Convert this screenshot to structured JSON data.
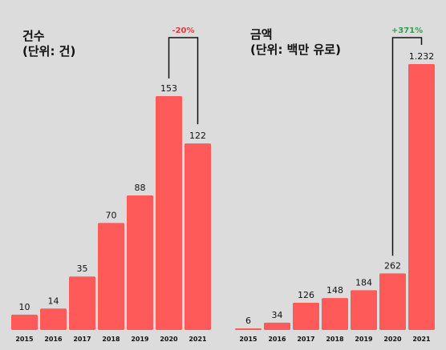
{
  "chart_data": [
    {
      "type": "bar",
      "title": "건수",
      "subtitle": "(단위: 건)",
      "categories": [
        "2015",
        "2016",
        "2017",
        "2018",
        "2019",
        "2020",
        "2021"
      ],
      "values": [
        10,
        14,
        35,
        70,
        88,
        153,
        122
      ],
      "value_labels": [
        "10",
        "14",
        "35",
        "70",
        "88",
        "153",
        "122"
      ],
      "change_label": "-20%",
      "change_color": "#e03c3c",
      "bar_color": "#ff5a5a"
    },
    {
      "type": "bar",
      "title": "금액",
      "subtitle": "(단위: 백만 유로)",
      "categories": [
        "2015",
        "2016",
        "2017",
        "2018",
        "2019",
        "2020",
        "2021"
      ],
      "values": [
        6,
        34,
        126,
        148,
        184,
        262,
        1232
      ],
      "value_labels": [
        "6",
        "34",
        "126",
        "148",
        "184",
        "262",
        "1.232"
      ],
      "change_label": "+371%",
      "change_color": "#3a9a4a",
      "bar_color": "#ff5a5a"
    }
  ]
}
